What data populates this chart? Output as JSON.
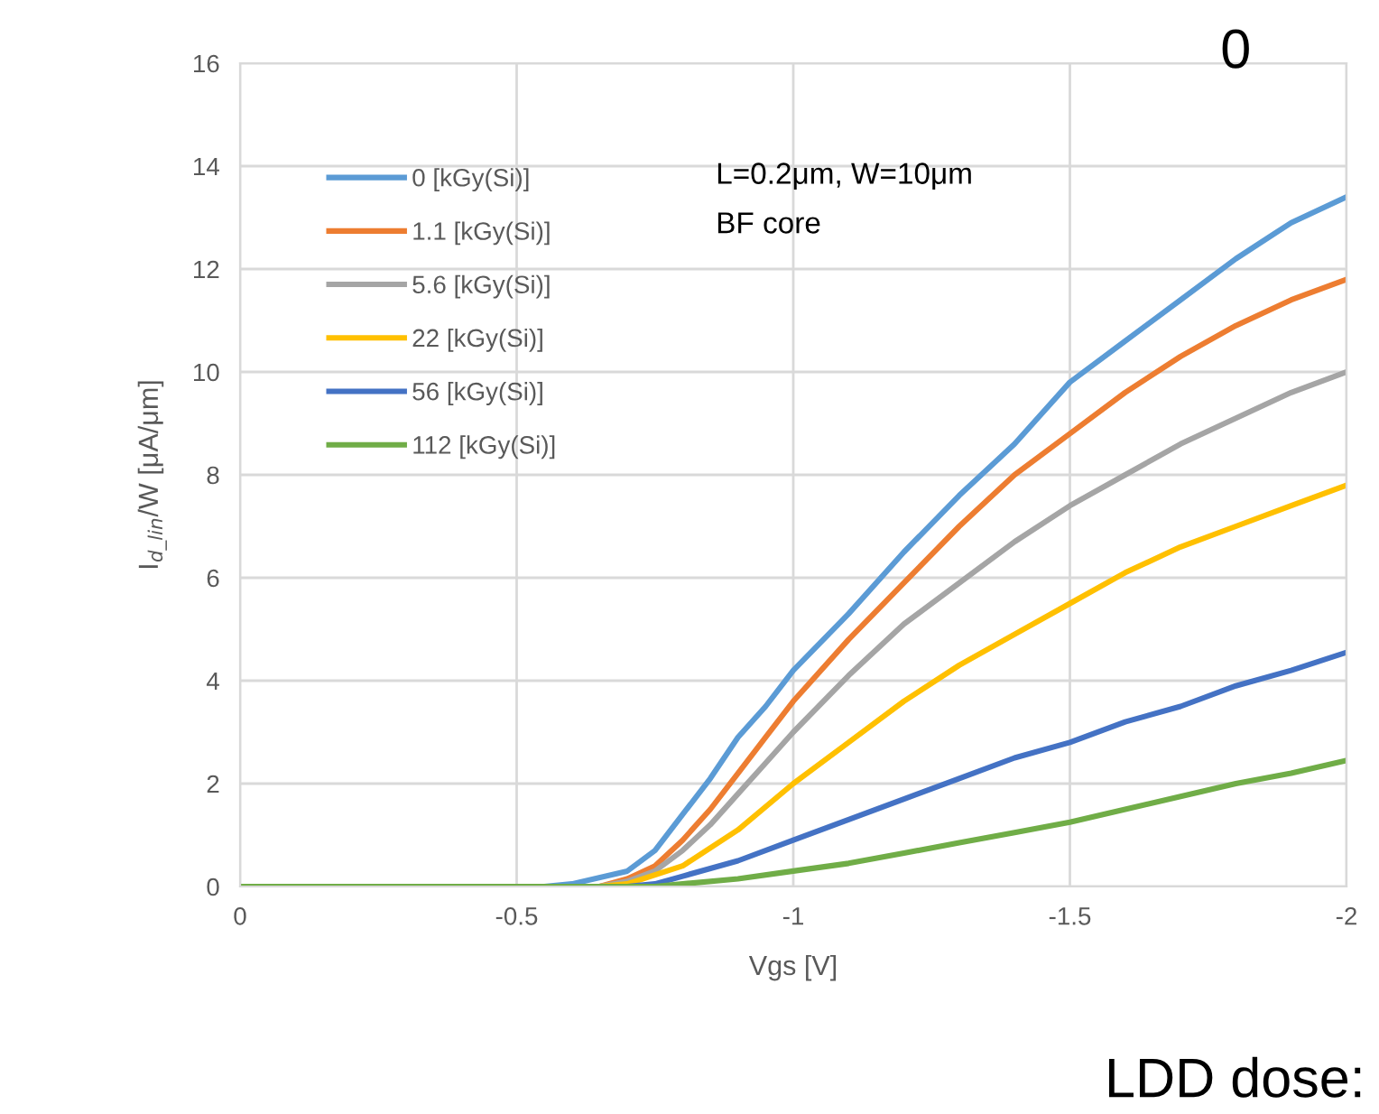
{
  "chart_data": {
    "type": "line",
    "xlabel": "Vgs [V]",
    "ylabel": "I$_{d_lin}$/W [μA/μm]",
    "xlim": [
      0,
      -2
    ],
    "xticks": [
      0,
      {
        "value": -0.5,
        "label": "-0.5"
      },
      {
        "value": -1,
        "label": "-1"
      },
      {
        "value": -1.5,
        "label": "-1.5"
      },
      {
        "value": -2,
        "label": "-2"
      }
    ],
    "ylim": [
      0,
      16
    ],
    "yticks": [
      0,
      2,
      4,
      6,
      8,
      10,
      12,
      14,
      16
    ],
    "grid": true,
    "legend": "top left",
    "marker": "none",
    "line_style": "solid",
    "annotations": [
      "L=0.2μm, W=10μm",
      "BF core",
      "0",
      "LDD dose:"
    ],
    "series": [
      {
        "name": "0 [kGy(Si)]",
        "color": "#5b9bd5",
        "x": [
          0,
          -0.55,
          -0.6,
          -0.7,
          -0.75,
          -0.8,
          -0.85,
          -0.9,
          -0.95,
          -1,
          -1.1,
          -1.2,
          -1.3,
          -1.4,
          -1.5,
          -1.6,
          -1.7,
          -1.8,
          -1.9,
          -2
        ],
        "values": [
          0,
          0,
          0.05,
          0.3,
          0.7,
          1.4,
          2.1,
          2.9,
          3.5,
          4.2,
          5.3,
          6.5,
          7.6,
          8.6,
          9.8,
          10.6,
          11.4,
          12.2,
          12.9,
          13.4
        ]
      },
      {
        "name": "1.1 [kGy(Si)]",
        "color": "#ed7d31",
        "x": [
          0,
          -0.65,
          -0.7,
          -0.75,
          -0.8,
          -0.85,
          -0.9,
          -0.95,
          -1,
          -1.1,
          -1.2,
          -1.3,
          -1.4,
          -1.5,
          -1.6,
          -1.7,
          -1.8,
          -1.9,
          -2
        ],
        "values": [
          0,
          0,
          0.15,
          0.4,
          0.9,
          1.5,
          2.2,
          2.9,
          3.6,
          4.8,
          5.9,
          7.0,
          8.0,
          8.8,
          9.6,
          10.3,
          10.9,
          11.4,
          11.8
        ]
      },
      {
        "name": "5.6 [kGy(Si)]",
        "color": "#a5a5a5",
        "x": [
          0,
          -0.65,
          -0.7,
          -0.75,
          -0.8,
          -0.85,
          -0.9,
          -0.95,
          -1,
          -1.1,
          -1.2,
          -1.3,
          -1.4,
          -1.5,
          -1.6,
          -1.7,
          -1.8,
          -1.9,
          -2
        ],
        "values": [
          0,
          0,
          0.1,
          0.3,
          0.7,
          1.2,
          1.8,
          2.4,
          3.0,
          4.1,
          5.1,
          5.9,
          6.7,
          7.4,
          8.0,
          8.6,
          9.1,
          9.6,
          10.0
        ]
      },
      {
        "name": "22 [kGy(Si)]",
        "color": "#ffc000",
        "x": [
          0,
          -0.65,
          -0.7,
          -0.8,
          -0.9,
          -1,
          -1.1,
          -1.2,
          -1.3,
          -1.4,
          -1.5,
          -1.6,
          -1.7,
          -1.8,
          -1.9,
          -2
        ],
        "values": [
          0,
          0,
          0.05,
          0.4,
          1.1,
          2.0,
          2.8,
          3.6,
          4.3,
          4.9,
          5.5,
          6.1,
          6.6,
          7.0,
          7.4,
          7.8
        ]
      },
      {
        "name": "56 [kGy(Si)]",
        "color": "#4472c4",
        "x": [
          0,
          -0.7,
          -0.75,
          -0.8,
          -0.9,
          -1,
          -1.1,
          -1.2,
          -1.3,
          -1.4,
          -1.5,
          -1.6,
          -1.7,
          -1.8,
          -1.9,
          -2
        ],
        "values": [
          0,
          0,
          0.05,
          0.2,
          0.5,
          0.9,
          1.3,
          1.7,
          2.1,
          2.5,
          2.8,
          3.2,
          3.5,
          3.9,
          4.2,
          4.55
        ]
      },
      {
        "name": "112 [kGy(Si)]",
        "color": "#70ad47",
        "x": [
          0,
          -0.75,
          -0.8,
          -0.9,
          -1,
          -1.1,
          -1.2,
          -1.3,
          -1.4,
          -1.5,
          -1.6,
          -1.7,
          -1.8,
          -1.9,
          -2
        ],
        "values": [
          0,
          0,
          0.05,
          0.15,
          0.3,
          0.45,
          0.65,
          0.85,
          1.05,
          1.25,
          1.5,
          1.75,
          2.0,
          2.2,
          2.45
        ]
      }
    ]
  }
}
